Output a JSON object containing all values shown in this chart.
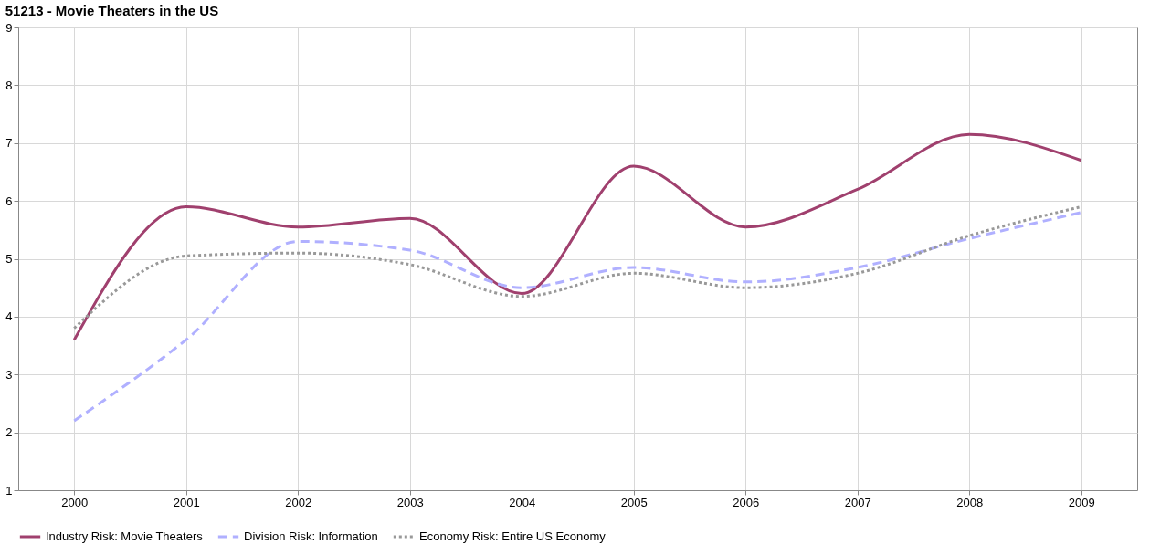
{
  "chart_data": {
    "type": "line",
    "title": "51213 - Movie Theaters in the US",
    "categories": [
      "2000",
      "2001",
      "2002",
      "2003",
      "2004",
      "2005",
      "2006",
      "2007",
      "2008",
      "2009"
    ],
    "series": [
      {
        "name": "Industry Risk: Movie Theaters",
        "color": "#a0406e",
        "line_style": "solid",
        "values": [
          3.6,
          5.9,
          5.55,
          5.7,
          4.4,
          6.6,
          5.55,
          6.2,
          7.15,
          6.7
        ]
      },
      {
        "name": "Division Risk: Information",
        "color": "#b0b0ff",
        "line_style": "dashed",
        "values": [
          2.2,
          3.6,
          5.3,
          5.15,
          4.5,
          4.85,
          4.6,
          4.85,
          5.35,
          5.8
        ]
      },
      {
        "name": "Economy Risk: Entire US Economy",
        "color": "#999999",
        "line_style": "dotted",
        "values": [
          3.8,
          5.05,
          5.1,
          4.9,
          4.35,
          4.75,
          4.5,
          4.75,
          5.4,
          5.9
        ]
      }
    ],
    "ylim": [
      1,
      9
    ],
    "yticks": [
      1,
      2,
      3,
      4,
      5,
      6,
      7,
      8,
      9
    ],
    "grid": true,
    "legend": "bottom",
    "marker": "none"
  }
}
